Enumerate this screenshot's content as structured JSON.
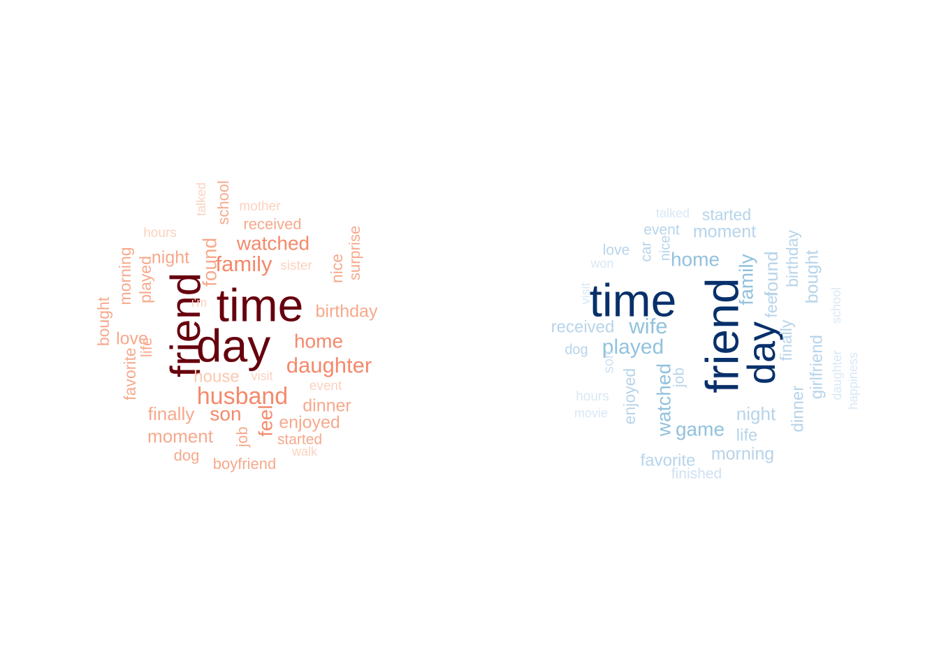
{
  "clouds": [
    {
      "words": [
        {
          "text": "time",
          "color": "#67000d"
        },
        {
          "text": "day",
          "color": "#67000d"
        },
        {
          "text": "friend",
          "color": "#67000d"
        },
        {
          "text": "husband",
          "color": "#f4896b"
        },
        {
          "text": "daughter",
          "color": "#f4896b"
        },
        {
          "text": "family",
          "color": "#f4896b"
        },
        {
          "text": "watched",
          "color": "#f4896b"
        },
        {
          "text": "home",
          "color": "#f4896b"
        },
        {
          "text": "son",
          "color": "#f4896b"
        },
        {
          "text": "feel",
          "color": "#f4896b"
        },
        {
          "text": "found",
          "color": "#f6a98c"
        },
        {
          "text": "birthday",
          "color": "#f6a98c"
        },
        {
          "text": "dinner",
          "color": "#f6a98c"
        },
        {
          "text": "enjoyed",
          "color": "#f6a98c"
        },
        {
          "text": "moment",
          "color": "#f6a98c"
        },
        {
          "text": "finally",
          "color": "#f6a98c"
        },
        {
          "text": "love",
          "color": "#f6a98c"
        },
        {
          "text": "night",
          "color": "#f6a98c"
        },
        {
          "text": "received",
          "color": "#f6a98c"
        },
        {
          "text": "school",
          "color": "#f6a98c"
        },
        {
          "text": "played",
          "color": "#f6a98c"
        },
        {
          "text": "morning",
          "color": "#f6a98c"
        },
        {
          "text": "bought",
          "color": "#f6a98c"
        },
        {
          "text": "favorite",
          "color": "#f6a98c"
        },
        {
          "text": "life",
          "color": "#f6a98c"
        },
        {
          "text": "job",
          "color": "#f6a98c"
        },
        {
          "text": "dog",
          "color": "#f6a98c"
        },
        {
          "text": "boyfriend",
          "color": "#f6a98c"
        },
        {
          "text": "started",
          "color": "#f6a98c"
        },
        {
          "text": "nice",
          "color": "#f6a98c"
        },
        {
          "text": "surprise",
          "color": "#f6a98c"
        },
        {
          "text": "house",
          "color": "#fbc8b0"
        },
        {
          "text": "hours",
          "color": "#fbd2bf"
        },
        {
          "text": "talked",
          "color": "#fbd2bf"
        },
        {
          "text": "mother",
          "color": "#fbd2bf"
        },
        {
          "text": "sister",
          "color": "#fbd2bf"
        },
        {
          "text": "event",
          "color": "#fbd2bf"
        },
        {
          "text": "visit",
          "color": "#fbd2bf"
        },
        {
          "text": "walk",
          "color": "#fbd2bf"
        },
        {
          "text": "i'm",
          "color": "#fbd2bf"
        }
      ]
    },
    {
      "words": [
        {
          "text": "time",
          "color": "#08306b"
        },
        {
          "text": "friend",
          "color": "#08306b"
        },
        {
          "text": "day",
          "color": "#08306b"
        },
        {
          "text": "home",
          "color": "#92c1dd"
        },
        {
          "text": "wife",
          "color": "#92c1dd"
        },
        {
          "text": "played",
          "color": "#92c1dd"
        },
        {
          "text": "watched",
          "color": "#92c1dd"
        },
        {
          "text": "game",
          "color": "#92c1dd"
        },
        {
          "text": "family",
          "color": "#92c1dd"
        },
        {
          "text": "found",
          "color": "#b7d4ea"
        },
        {
          "text": "birthday",
          "color": "#b7d4ea"
        },
        {
          "text": "bought",
          "color": "#b7d4ea"
        },
        {
          "text": "girlfriend",
          "color": "#b7d4ea"
        },
        {
          "text": "dinner",
          "color": "#b7d4ea"
        },
        {
          "text": "night",
          "color": "#b7d4ea"
        },
        {
          "text": "morning",
          "color": "#b7d4ea"
        },
        {
          "text": "favorite",
          "color": "#b7d4ea"
        },
        {
          "text": "life",
          "color": "#b7d4ea"
        },
        {
          "text": "enjoyed",
          "color": "#b7d4ea"
        },
        {
          "text": "finally",
          "color": "#b7d4ea"
        },
        {
          "text": "feel",
          "color": "#b7d4ea"
        },
        {
          "text": "received",
          "color": "#b7d4ea"
        },
        {
          "text": "moment",
          "color": "#b7d4ea"
        },
        {
          "text": "started",
          "color": "#b7d4ea"
        },
        {
          "text": "event",
          "color": "#b7d4ea"
        },
        {
          "text": "love",
          "color": "#b7d4ea"
        },
        {
          "text": "job",
          "color": "#b7d4ea"
        },
        {
          "text": "dog",
          "color": "#b7d4ea"
        },
        {
          "text": "car",
          "color": "#b7d4ea"
        },
        {
          "text": "nice",
          "color": "#b7d4ea"
        },
        {
          "text": "son",
          "color": "#cfe1f2"
        },
        {
          "text": "finished",
          "color": "#cfe1f2"
        },
        {
          "text": "talked",
          "color": "#dae8f5"
        },
        {
          "text": "won",
          "color": "#dae8f5"
        },
        {
          "text": "visit",
          "color": "#dae8f5"
        },
        {
          "text": "hours",
          "color": "#dae8f5"
        },
        {
          "text": "movie",
          "color": "#dae8f5"
        },
        {
          "text": "school",
          "color": "#dae8f5"
        },
        {
          "text": "daughter",
          "color": "#dae8f5"
        },
        {
          "text": "happiness",
          "color": "#dae8f5"
        }
      ]
    }
  ]
}
